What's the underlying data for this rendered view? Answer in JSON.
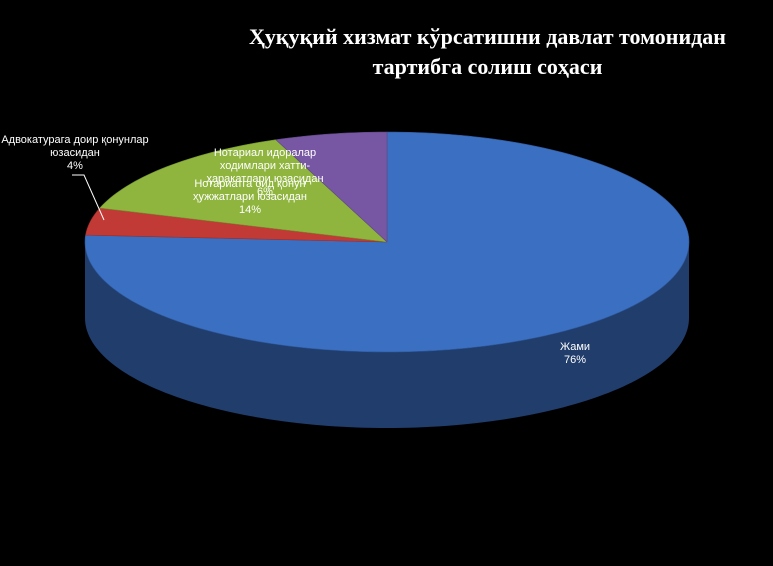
{
  "chart_data": {
    "type": "pie",
    "title": "Ҳуқуқий хизмат кўрсатишни давлат томонидан тартибга солиш соҳаси",
    "categories": [
      "Жами",
      "Адвокатурага доир қонунлар юзасидан",
      "Нотариатга оид қонун ҳужжатлари юзасидан",
      "Нотариал идоралар ходимлари хатти-ҳаракатлари юзасидан"
    ],
    "values": [
      76,
      4,
      14,
      6
    ],
    "value_labels": [
      "76%",
      "4%",
      "14%",
      "6%"
    ],
    "colors": [
      "#3b6fc2",
      "#c23a35",
      "#8fb53e",
      "#7757a3"
    ]
  }
}
